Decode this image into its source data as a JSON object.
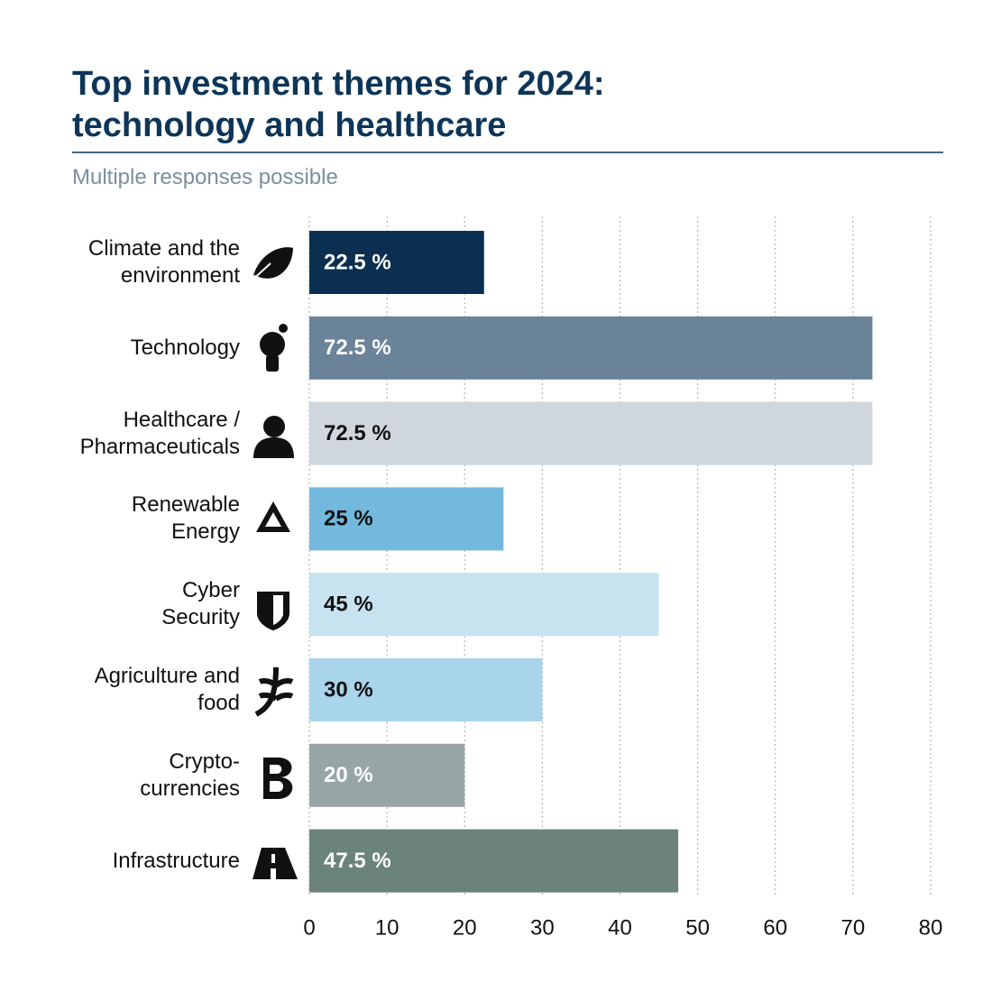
{
  "chart_data": {
    "type": "bar",
    "orientation": "horizontal",
    "title": "Top investment themes for 2024:\ntechnology and healthcare",
    "subtitle": "Multiple responses possible",
    "categories": [
      "Climate and the\nenvironment",
      "Technology",
      "Healthcare /\nPharmaceuticals",
      "Renewable\nEnergy",
      "Cyber\nSecurity",
      "Agriculture and\nfood",
      "Crypto-\ncurrencies",
      "Infrastructure"
    ],
    "values": [
      22.5,
      72.5,
      72.5,
      25,
      45,
      30,
      20,
      47.5
    ],
    "value_labels": [
      "22.5 %",
      "72.5 %",
      "72.5 %",
      "25 %",
      "45 %",
      "30 %",
      "20 %",
      "47.5 %"
    ],
    "colors": [
      "#0a2f50",
      "#6a8399",
      "#cfd6de",
      "#72b9dd",
      "#c7e3f0",
      "#a8d5ea",
      "#97a5a5",
      "#6b827d"
    ],
    "label_colors": [
      "#ffffff",
      "#ffffff",
      "#111111",
      "#111111",
      "#111111",
      "#111111",
      "#ffffff",
      "#ffffff"
    ],
    "xlim": [
      0,
      80
    ],
    "xticks": [
      0,
      10,
      20,
      30,
      40,
      50,
      60,
      70,
      80
    ],
    "grid": true
  }
}
